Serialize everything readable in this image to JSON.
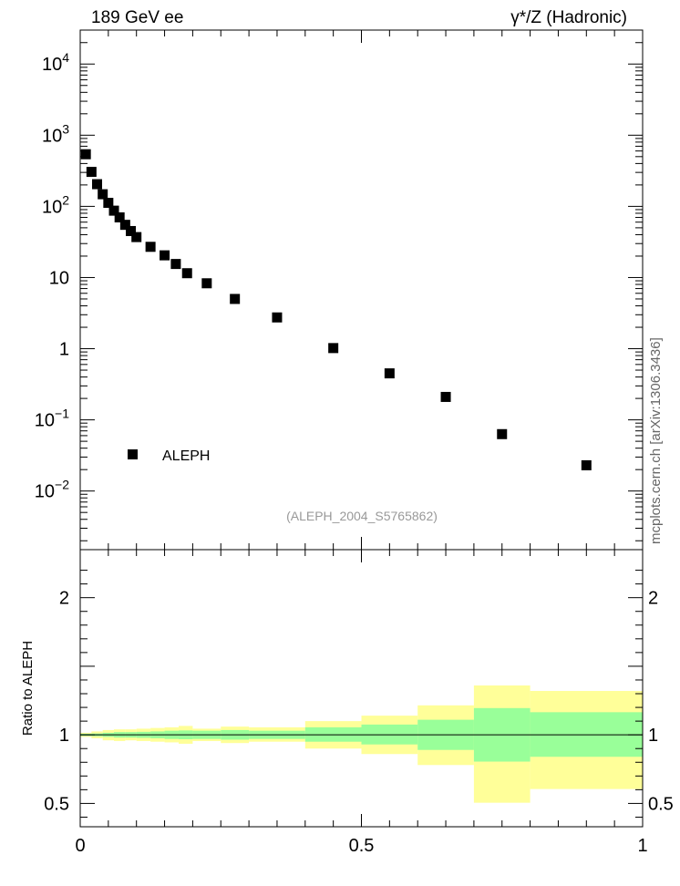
{
  "header": {
    "left_title": "189 GeV ee",
    "right_title": "γ*/Z (Hadronic)"
  },
  "side_label": "mcplots.cern.ch [arXiv:1306.3436]",
  "analysis_label": "(ALEPH_2004_S5765862)",
  "legend": {
    "entry": "ALEPH",
    "position": "lower-left"
  },
  "colors": {
    "marker": "#000000",
    "band_outer": "#ffff99",
    "band_inner": "#99ff99",
    "analysis_label": "#999999"
  },
  "chart_data": [
    {
      "type": "scatter",
      "panel": "main",
      "xlabel": "",
      "ylabel": "",
      "xlim": [
        0,
        1
      ],
      "ylim": [
        0.0015,
        30000
      ],
      "yscale": "log",
      "y_ticks": [
        {
          "value": 10000,
          "base": "10",
          "exp": "4"
        },
        {
          "value": 1000,
          "base": "10",
          "exp": "3"
        },
        {
          "value": 100,
          "base": "10",
          "exp": "2"
        },
        {
          "value": 10,
          "base": "10",
          "exp": ""
        },
        {
          "value": 1,
          "base": "1",
          "exp": ""
        },
        {
          "value": 0.1,
          "base": "10",
          "exp": "−1"
        },
        {
          "value": 0.01,
          "base": "10",
          "exp": "−2"
        }
      ],
      "series": [
        {
          "name": "ALEPH",
          "points": [
            [
              0.01,
              540
            ],
            [
              0.02,
              305
            ],
            [
              0.03,
              205
            ],
            [
              0.04,
              148
            ],
            [
              0.05,
              112
            ],
            [
              0.06,
              87
            ],
            [
              0.07,
              70
            ],
            [
              0.08,
              55
            ],
            [
              0.09,
              45
            ],
            [
              0.1,
              37
            ],
            [
              0.125,
              27
            ],
            [
              0.15,
              20.5
            ],
            [
              0.17,
              15.5
            ],
            [
              0.19,
              11.5
            ],
            [
              0.225,
              8.3
            ],
            [
              0.275,
              5.0
            ],
            [
              0.35,
              2.75
            ],
            [
              0.45,
              1.02
            ],
            [
              0.55,
              0.45
            ],
            [
              0.65,
              0.21
            ],
            [
              0.75,
              0.063
            ],
            [
              0.9,
              0.023
            ]
          ]
        }
      ]
    },
    {
      "type": "area",
      "panel": "ratio",
      "xlabel": "",
      "ylabel": "Ratio to ALEPH",
      "xlim": [
        0,
        1
      ],
      "ylim": [
        0.33,
        2.35
      ],
      "y_ticks": [
        {
          "value": 2,
          "label": "2"
        },
        {
          "value": 1,
          "label": "1"
        },
        {
          "value": 0.5,
          "label": "0.5"
        }
      ],
      "x_ticks": [
        {
          "value": 0,
          "label": "0"
        },
        {
          "value": 0.5,
          "label": "0.5"
        },
        {
          "value": 1,
          "label": "1"
        }
      ],
      "reference_line": 1,
      "bins": [
        {
          "lo": 0.0,
          "hi": 0.02,
          "outer": [
            0.985,
            1.015
          ],
          "inner": [
            0.992,
            1.008
          ]
        },
        {
          "lo": 0.02,
          "hi": 0.04,
          "outer": [
            0.975,
            1.025
          ],
          "inner": [
            0.99,
            1.01
          ]
        },
        {
          "lo": 0.04,
          "hi": 0.06,
          "outer": [
            0.96,
            1.035
          ],
          "inner": [
            0.985,
            1.015
          ]
        },
        {
          "lo": 0.06,
          "hi": 0.08,
          "outer": [
            0.955,
            1.04
          ],
          "inner": [
            0.98,
            1.02
          ]
        },
        {
          "lo": 0.08,
          "hi": 0.1,
          "outer": [
            0.96,
            1.04
          ],
          "inner": [
            0.98,
            1.02
          ]
        },
        {
          "lo": 0.1,
          "hi": 0.125,
          "outer": [
            0.955,
            1.045
          ],
          "inner": [
            0.978,
            1.022
          ]
        },
        {
          "lo": 0.125,
          "hi": 0.15,
          "outer": [
            0.95,
            1.05
          ],
          "inner": [
            0.975,
            1.025
          ]
        },
        {
          "lo": 0.15,
          "hi": 0.175,
          "outer": [
            0.945,
            1.055
          ],
          "inner": [
            0.97,
            1.03
          ]
        },
        {
          "lo": 0.175,
          "hi": 0.2,
          "outer": [
            0.935,
            1.065
          ],
          "inner": [
            0.968,
            1.032
          ]
        },
        {
          "lo": 0.2,
          "hi": 0.25,
          "outer": [
            0.955,
            1.045
          ],
          "inner": [
            0.97,
            1.03
          ]
        },
        {
          "lo": 0.25,
          "hi": 0.3,
          "outer": [
            0.94,
            1.06
          ],
          "inner": [
            0.965,
            1.035
          ]
        },
        {
          "lo": 0.3,
          "hi": 0.4,
          "outer": [
            0.95,
            1.055
          ],
          "inner": [
            0.97,
            1.03
          ]
        },
        {
          "lo": 0.4,
          "hi": 0.5,
          "outer": [
            0.9,
            1.1
          ],
          "inner": [
            0.95,
            1.055
          ]
        },
        {
          "lo": 0.5,
          "hi": 0.6,
          "outer": [
            0.86,
            1.14
          ],
          "inner": [
            0.93,
            1.075
          ]
        },
        {
          "lo": 0.6,
          "hi": 0.7,
          "outer": [
            0.78,
            1.215
          ],
          "inner": [
            0.89,
            1.11
          ]
        },
        {
          "lo": 0.7,
          "hi": 0.8,
          "outer": [
            0.505,
            1.36
          ],
          "inner": [
            0.805,
            1.195
          ]
        },
        {
          "lo": 0.8,
          "hi": 1.0,
          "outer": [
            0.605,
            1.32
          ],
          "inner": [
            0.84,
            1.165
          ]
        }
      ]
    }
  ]
}
